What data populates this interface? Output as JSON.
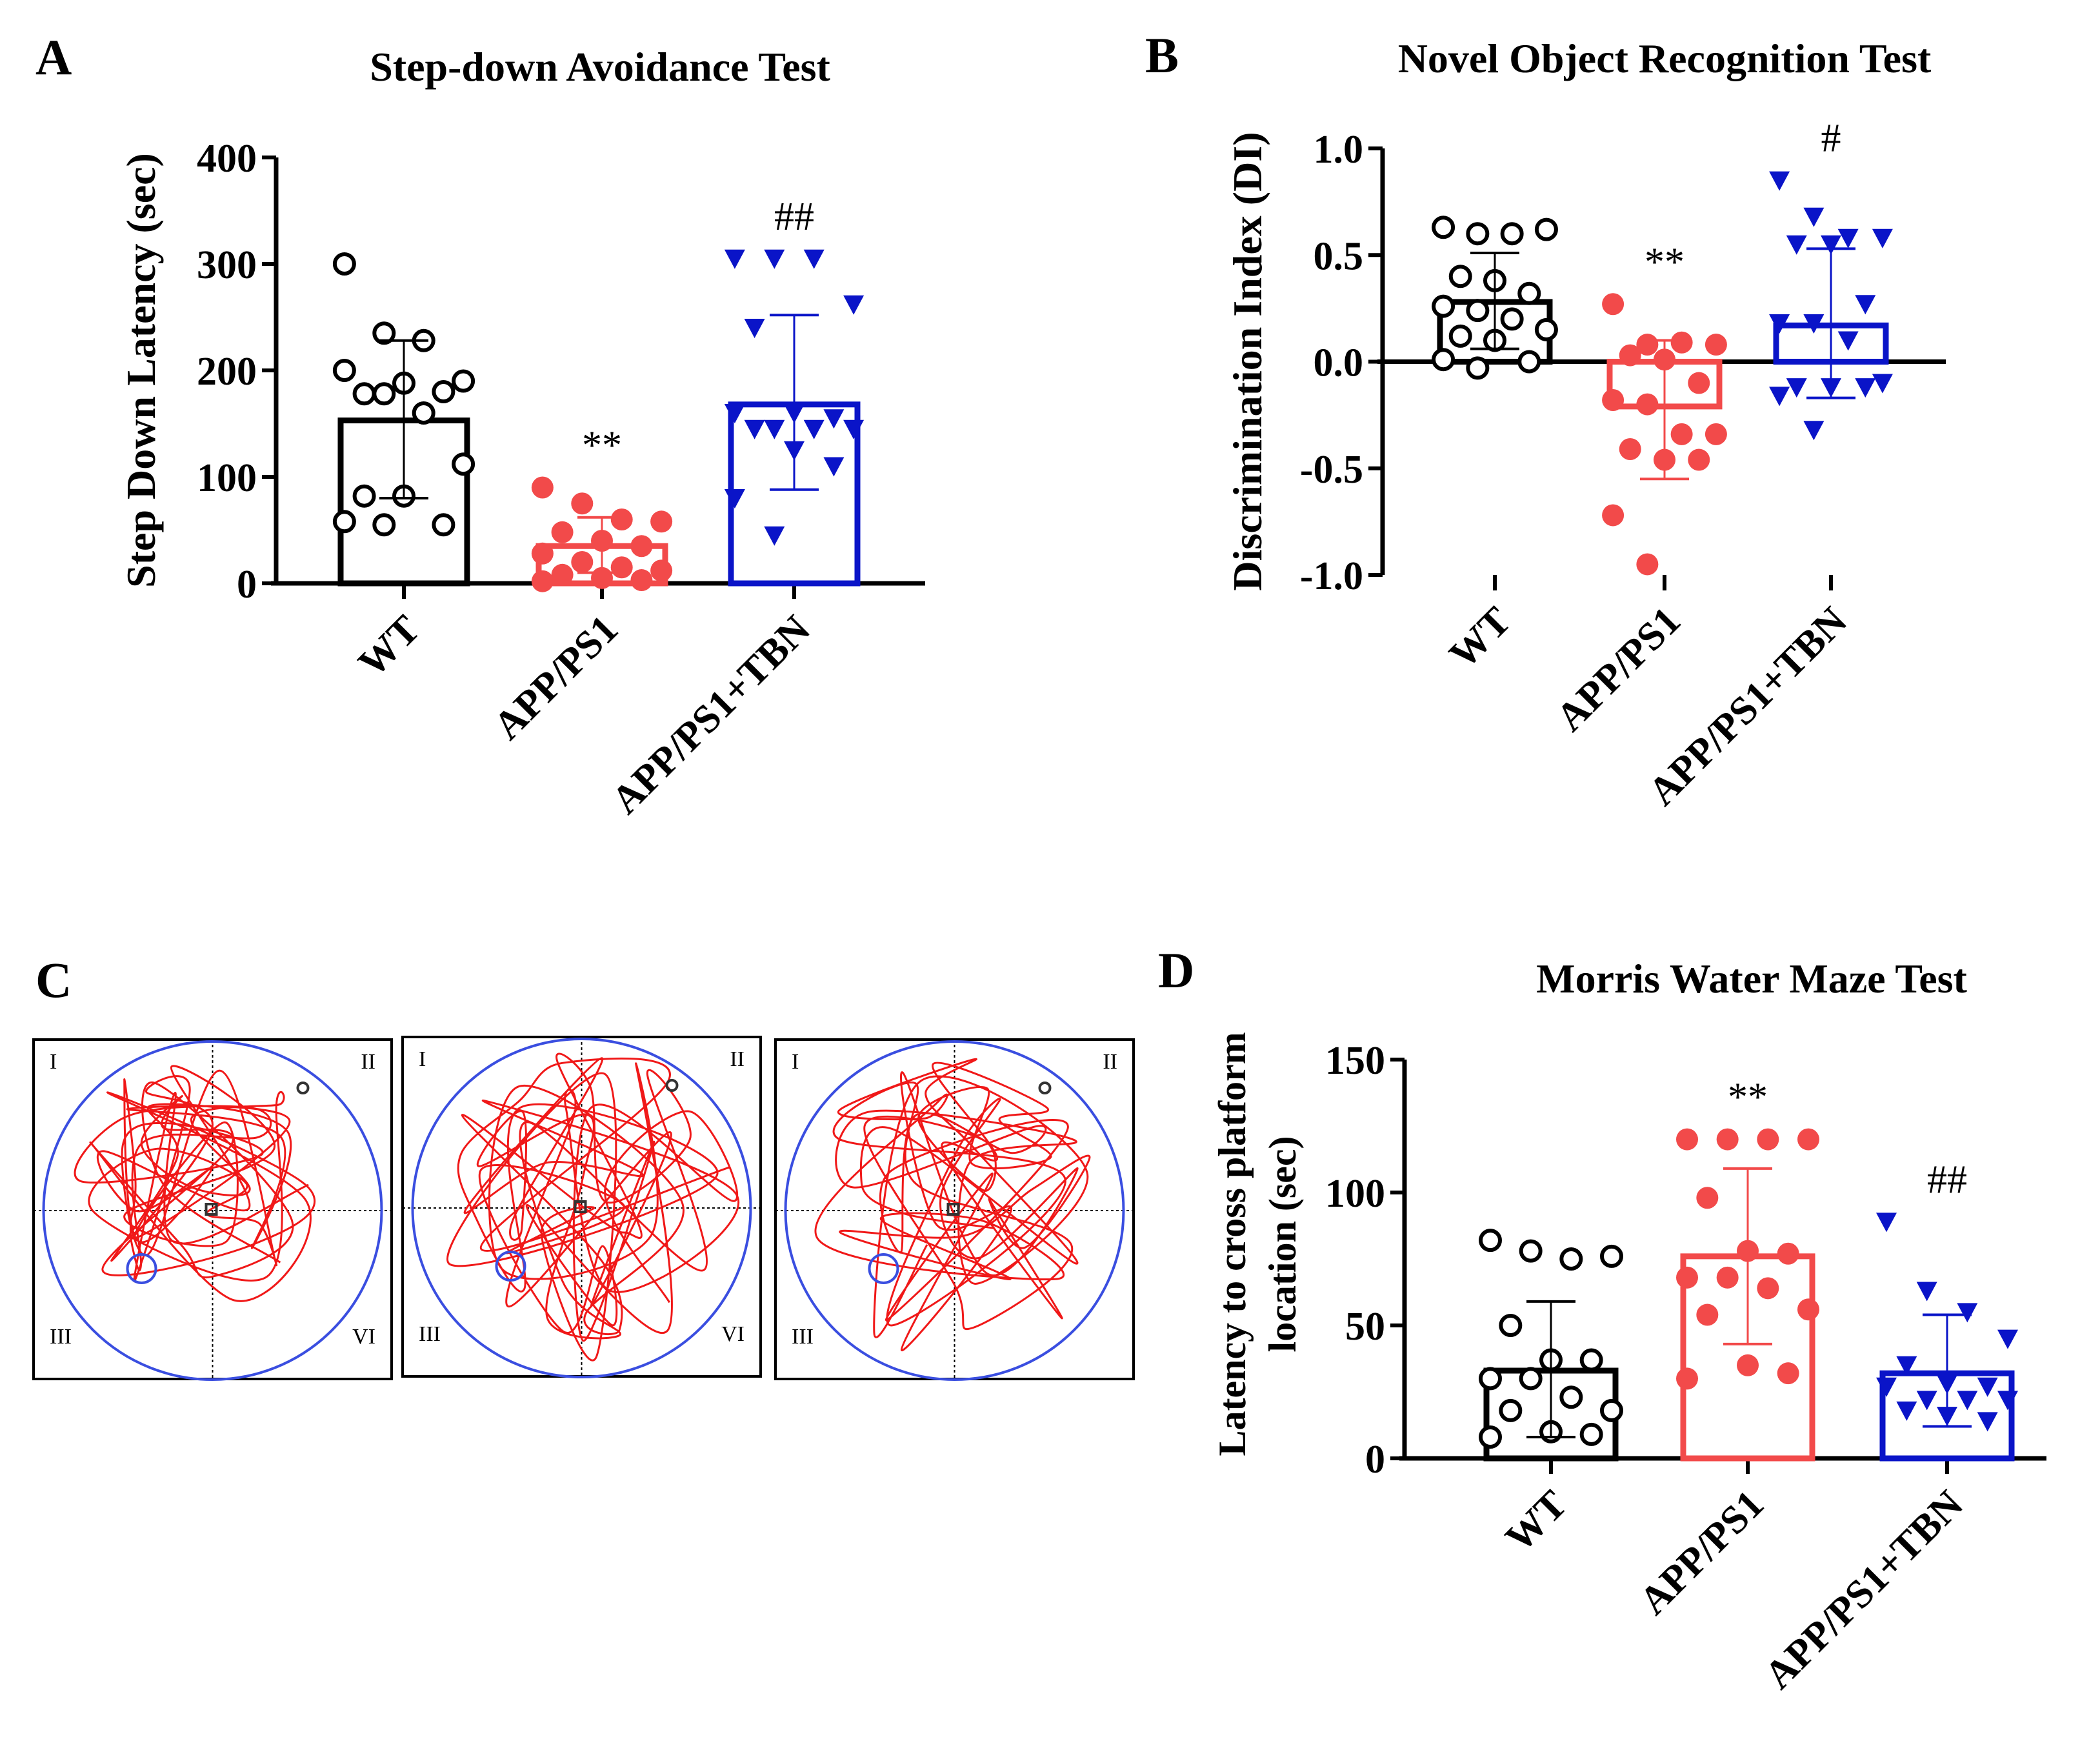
{
  "colors": {
    "wt": "#000000",
    "app": "#f24a4a",
    "tbn": "#0a14c8",
    "maze_circle": "#3a4ee0",
    "maze_path": "#f01818"
  },
  "panel_labels": {
    "a": "A",
    "b": "B",
    "c": "C",
    "d": "D"
  },
  "chart_data": [
    {
      "id": "A",
      "type": "bar",
      "title": "Step-down Avoidance Test",
      "ylabel": "Step Down Latency (sec)",
      "xlabel": "",
      "ylim": [
        0,
        400
      ],
      "yticks": [
        0,
        100,
        200,
        300,
        400
      ],
      "categories": [
        "WT",
        "APP/PS1",
        "APP/PS1+TBN"
      ],
      "means": [
        153,
        35,
        168
      ],
      "error_low": [
        80,
        10,
        88
      ],
      "error_high": [
        228,
        62,
        252
      ],
      "points": [
        [
          300,
          235,
          228,
          190,
          178,
          188,
          180,
          200,
          178,
          160,
          112,
          82,
          82,
          55,
          58,
          55
        ],
        [
          90,
          75,
          60,
          58,
          48,
          40,
          35,
          28,
          20,
          15,
          12,
          8,
          5,
          3,
          2
        ],
        [
          305,
          305,
          305,
          262,
          240,
          160,
          155,
          160,
          145,
          145,
          145,
          145,
          125,
          110,
          80,
          45
        ]
      ],
      "markers": [
        "open-circle",
        "filled-circle",
        "filled-down-triangle"
      ],
      "annotations": [
        "",
        "**",
        "##"
      ]
    },
    {
      "id": "B",
      "type": "bar",
      "title": "Novel Object Recognition Test",
      "ylabel": "Discrimination Index (DI)",
      "xlabel": "",
      "ylim": [
        -1.0,
        1.0
      ],
      "yticks": [
        "-1.0",
        "-0.5",
        "0.0",
        "0.5",
        "1.0"
      ],
      "categories": [
        "WT",
        "APP/PS1",
        "APP/PS1+TBN"
      ],
      "means": [
        0.28,
        -0.21,
        0.17
      ],
      "error_low": [
        0.06,
        -0.55,
        -0.17
      ],
      "error_high": [
        0.51,
        0.1,
        0.53
      ],
      "points": [
        [
          0.63,
          0.6,
          0.6,
          0.62,
          0.4,
          0.38,
          0.32,
          0.26,
          0.24,
          0.2,
          0.15,
          0.12,
          0.1,
          0.0,
          0.01,
          -0.03
        ],
        [
          0.27,
          0.08,
          0.09,
          0.08,
          0.03,
          0.01,
          -0.1,
          -0.18,
          -0.2,
          -0.34,
          -0.34,
          -0.41,
          -0.46,
          -0.46,
          -0.72,
          -0.95
        ],
        [
          0.85,
          0.68,
          0.58,
          0.58,
          0.55,
          0.55,
          0.27,
          0.18,
          0.18,
          0.1,
          -0.1,
          -0.12,
          -0.12,
          -0.12,
          -0.16,
          -0.32
        ]
      ],
      "markers": [
        "open-circle",
        "filled-circle",
        "filled-down-triangle"
      ],
      "annotations": [
        "",
        "**",
        "#"
      ]
    },
    {
      "id": "D",
      "type": "bar",
      "title": "Morris Water Maze Test",
      "ylabel": "Latency to cross platform location (sec)",
      "ylabel_lines": [
        "Latency to cross platform",
        "location  (sec)"
      ],
      "xlabel": "",
      "ylim": [
        0,
        150
      ],
      "yticks": [
        0,
        50,
        100,
        150
      ],
      "categories": [
        "WT",
        "APP/PS1",
        "APP/PS1+TBN"
      ],
      "means": [
        33,
        76,
        32
      ],
      "error_low": [
        8,
        43,
        12
      ],
      "error_high": [
        59,
        109,
        54
      ],
      "points": [
        [
          82,
          78,
          75,
          76,
          50,
          37,
          37,
          30,
          30,
          23,
          18,
          18,
          10,
          9,
          8
        ],
        [
          120,
          120,
          120,
          120,
          98,
          78,
          77,
          68,
          68,
          64,
          56,
          54,
          35,
          32,
          30
        ],
        [
          89,
          63,
          55,
          45,
          35,
          28,
          27,
          27,
          22,
          22,
          22,
          18,
          16,
          14
        ]
      ],
      "markers": [
        "open-circle",
        "filled-circle",
        "filled-down-triangle"
      ],
      "annotations": [
        "",
        "**",
        "##"
      ]
    }
  ],
  "mazes": [
    {
      "quadrants": [
        "I",
        "II",
        "III",
        "VI"
      ]
    },
    {
      "quadrants": [
        "I",
        "II",
        "III",
        "VI"
      ]
    },
    {
      "quadrants": [
        "I",
        "II",
        "III"
      ]
    }
  ]
}
